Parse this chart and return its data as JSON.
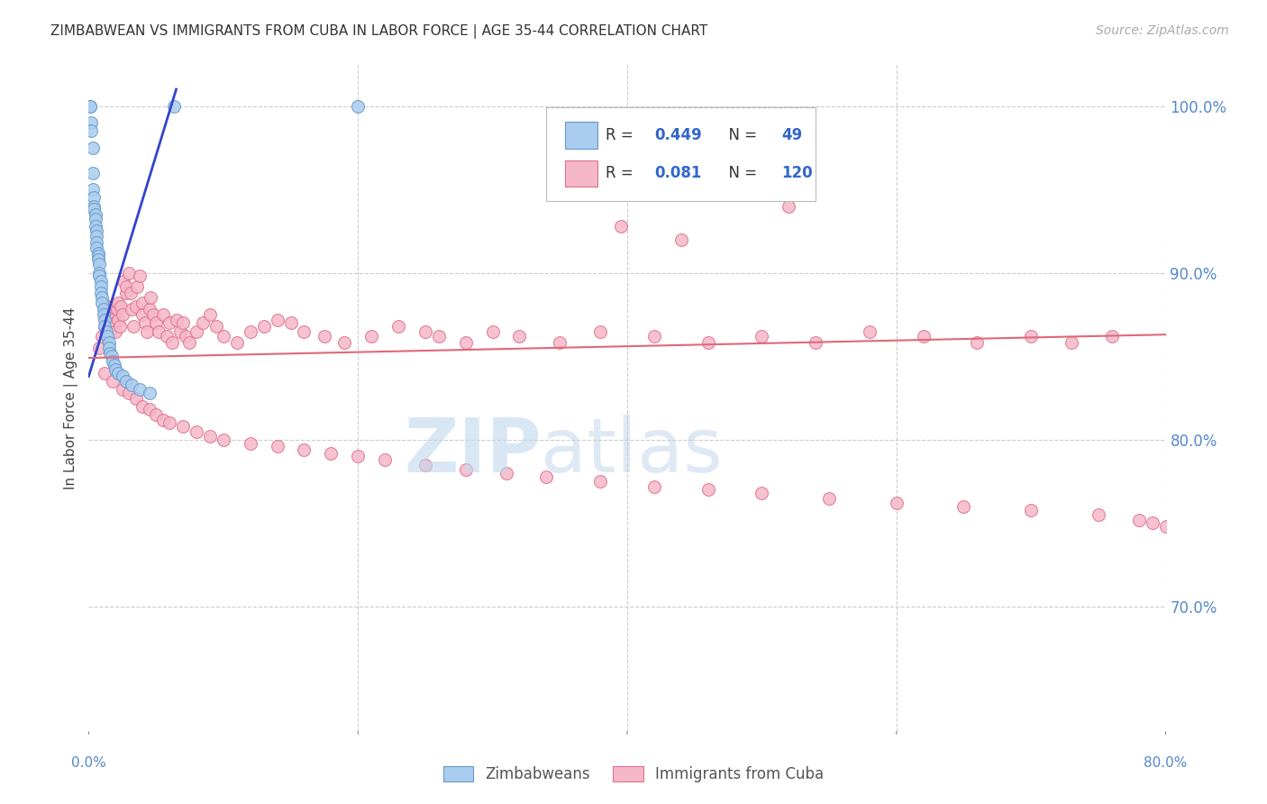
{
  "title": "ZIMBABWEAN VS IMMIGRANTS FROM CUBA IN LABOR FORCE | AGE 35-44 CORRELATION CHART",
  "source": "Source: ZipAtlas.com",
  "ylabel": "In Labor Force | Age 35-44",
  "xlim": [
    0.0,
    0.8
  ],
  "ylim": [
    0.625,
    1.025
  ],
  "right_yticks": [
    0.7,
    0.8,
    0.9,
    1.0
  ],
  "right_yticklabels": [
    "70.0%",
    "80.0%",
    "90.0%",
    "100.0%"
  ],
  "grid_color": "#cccccc",
  "background_color": "#ffffff",
  "zim_dot_color": "#aaccee",
  "zim_edge_color": "#6699cc",
  "cuba_dot_color": "#f5b8c8",
  "cuba_edge_color": "#e07090",
  "trend_blue_color": "#3344cc",
  "trend_pink_color": "#e06878",
  "zim_trend_x0": 0.0,
  "zim_trend_y0": 0.838,
  "zim_trend_x1": 0.065,
  "zim_trend_y1": 1.01,
  "cuba_trend_x0": 0.0,
  "cuba_trend_y0": 0.849,
  "cuba_trend_x1": 0.8,
  "cuba_trend_y1": 0.863,
  "watermark_zip_color": "#c0d8ee",
  "watermark_atlas_color": "#b8d0e8",
  "legend_R_blue": "0.449",
  "legend_N_blue": "49",
  "legend_R_pink": "0.081",
  "legend_N_pink": "120",
  "zim_x": [
    0.001,
    0.001,
    0.002,
    0.002,
    0.003,
    0.003,
    0.003,
    0.004,
    0.004,
    0.004,
    0.005,
    0.005,
    0.005,
    0.006,
    0.006,
    0.006,
    0.006,
    0.007,
    0.007,
    0.007,
    0.008,
    0.008,
    0.008,
    0.009,
    0.009,
    0.009,
    0.01,
    0.01,
    0.011,
    0.011,
    0.012,
    0.012,
    0.013,
    0.014,
    0.015,
    0.015,
    0.016,
    0.017,
    0.018,
    0.019,
    0.02,
    0.022,
    0.025,
    0.028,
    0.032,
    0.038,
    0.045,
    0.063,
    0.2
  ],
  "zim_y": [
    1.0,
    1.0,
    0.99,
    0.985,
    0.975,
    0.96,
    0.95,
    0.945,
    0.94,
    0.938,
    0.935,
    0.932,
    0.928,
    0.925,
    0.922,
    0.918,
    0.915,
    0.912,
    0.91,
    0.908,
    0.905,
    0.9,
    0.898,
    0.895,
    0.892,
    0.888,
    0.885,
    0.882,
    0.878,
    0.875,
    0.872,
    0.868,
    0.865,
    0.862,
    0.858,
    0.855,
    0.852,
    0.85,
    0.847,
    0.845,
    0.842,
    0.84,
    0.838,
    0.835,
    0.833,
    0.83,
    0.828,
    1.0,
    1.0
  ],
  "cuba_x": [
    0.008,
    0.01,
    0.012,
    0.013,
    0.014,
    0.015,
    0.016,
    0.017,
    0.018,
    0.018,
    0.02,
    0.02,
    0.021,
    0.022,
    0.022,
    0.023,
    0.024,
    0.025,
    0.026,
    0.028,
    0.028,
    0.03,
    0.031,
    0.032,
    0.033,
    0.035,
    0.036,
    0.038,
    0.04,
    0.04,
    0.042,
    0.043,
    0.045,
    0.046,
    0.048,
    0.05,
    0.052,
    0.055,
    0.058,
    0.06,
    0.062,
    0.065,
    0.068,
    0.07,
    0.072,
    0.075,
    0.08,
    0.085,
    0.09,
    0.095,
    0.1,
    0.11,
    0.12,
    0.13,
    0.14,
    0.15,
    0.16,
    0.175,
    0.19,
    0.21,
    0.23,
    0.25,
    0.26,
    0.28,
    0.3,
    0.32,
    0.35,
    0.38,
    0.42,
    0.46,
    0.5,
    0.54,
    0.58,
    0.62,
    0.66,
    0.7,
    0.73,
    0.76,
    0.012,
    0.018,
    0.025,
    0.03,
    0.035,
    0.04,
    0.045,
    0.05,
    0.055,
    0.06,
    0.07,
    0.08,
    0.09,
    0.1,
    0.12,
    0.14,
    0.16,
    0.18,
    0.2,
    0.22,
    0.25,
    0.28,
    0.31,
    0.34,
    0.38,
    0.42,
    0.46,
    0.5,
    0.55,
    0.6,
    0.65,
    0.7,
    0.75,
    0.78,
    0.79,
    0.8,
    0.395,
    0.44,
    0.48,
    0.52
  ],
  "cuba_y": [
    0.855,
    0.862,
    0.868,
    0.875,
    0.88,
    0.87,
    0.865,
    0.875,
    0.88,
    0.872,
    0.87,
    0.865,
    0.878,
    0.882,
    0.872,
    0.868,
    0.88,
    0.875,
    0.895,
    0.888,
    0.892,
    0.9,
    0.888,
    0.878,
    0.868,
    0.88,
    0.892,
    0.898,
    0.875,
    0.882,
    0.87,
    0.865,
    0.878,
    0.885,
    0.875,
    0.87,
    0.865,
    0.875,
    0.862,
    0.87,
    0.858,
    0.872,
    0.865,
    0.87,
    0.862,
    0.858,
    0.865,
    0.87,
    0.875,
    0.868,
    0.862,
    0.858,
    0.865,
    0.868,
    0.872,
    0.87,
    0.865,
    0.862,
    0.858,
    0.862,
    0.868,
    0.865,
    0.862,
    0.858,
    0.865,
    0.862,
    0.858,
    0.865,
    0.862,
    0.858,
    0.862,
    0.858,
    0.865,
    0.862,
    0.858,
    0.862,
    0.858,
    0.862,
    0.84,
    0.835,
    0.83,
    0.828,
    0.825,
    0.82,
    0.818,
    0.815,
    0.812,
    0.81,
    0.808,
    0.805,
    0.802,
    0.8,
    0.798,
    0.796,
    0.794,
    0.792,
    0.79,
    0.788,
    0.785,
    0.782,
    0.78,
    0.778,
    0.775,
    0.772,
    0.77,
    0.768,
    0.765,
    0.762,
    0.76,
    0.758,
    0.755,
    0.752,
    0.75,
    0.748,
    0.928,
    0.92,
    0.955,
    0.94
  ]
}
